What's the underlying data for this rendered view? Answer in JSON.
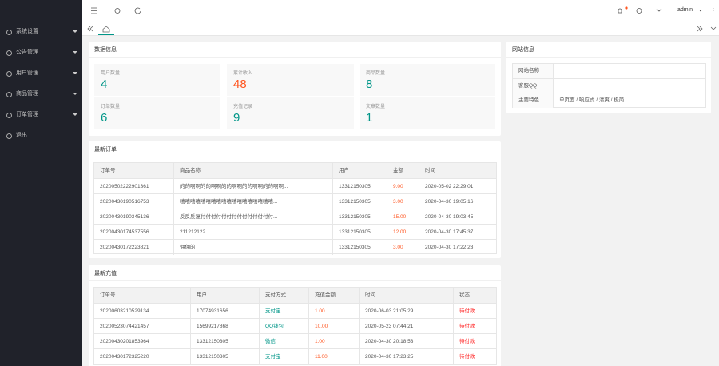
{
  "sidebar": {
    "menu": [
      "系统设置",
      "公告管理",
      "用户管理",
      "商品管理",
      "订单管理",
      "退出"
    ]
  },
  "topbar": {
    "user": "admin"
  },
  "stats": {
    "title": "数据信息",
    "items": [
      {
        "label": "用户数量",
        "value": 4
      },
      {
        "label": "累计收入",
        "value": 48
      },
      {
        "label": "商品数量",
        "value": 8
      },
      {
        "label": "订单数量",
        "value": 6
      },
      {
        "label": "充值记录",
        "value": 9
      },
      {
        "label": "文章数量",
        "value": 1
      }
    ]
  },
  "site_info": {
    "title": "网站信息",
    "rows": [
      {
        "label": "网站名称"
      },
      {
        "label": "客服QQ"
      },
      {
        "label": "主要特色",
        "value": "单页面 / 响应式 / 清爽 / 极简"
      }
    ]
  },
  "orders": {
    "title": "最新订单",
    "columns": [
      "订单号",
      "商品名称",
      "用户",
      "金额",
      "时间"
    ],
    "rows": [
      [
        "20200502222901361",
        "的的啊啊的的啊啊的的啊啊的的啊啊的的啊啊...",
        "13312150305",
        "9.00",
        "2020-05-02 22:29:01"
      ],
      [
        "20200430190516753",
        "嘻嘻嘻嘻嘻嘻嘻嘻嘻嘻嘻嘻嘻嘻嘻嘻嘻嘻...",
        "13312150305",
        "3.00",
        "2020-04-30 19:05:16"
      ],
      [
        "20200430190345136",
        "反反反复付付付付付付付付付付付付付付...",
        "13312150305",
        "15.00",
        "2020-04-30 19:03:45"
      ],
      [
        "20200430174537556",
        "211212122",
        "13312150305",
        "12.00",
        "2020-04-30 17:45:37"
      ],
      [
        "20200430172223821",
        "佣佣的",
        "13312150305",
        "3.00",
        "2020-04-30 17:22:23"
      ]
    ]
  },
  "recharges": {
    "title": "最新充值",
    "columns": [
      "订单号",
      "用户",
      "支付方式",
      "充值金额",
      "时间",
      "状态"
    ],
    "rows": [
      [
        "20200603210529134",
        "17074931656",
        "支付宝",
        "1.00",
        "2020-06-03 21:05:29",
        "待付款"
      ],
      [
        "20200523074421457",
        "15699217868",
        "QQ钱包",
        "10.00",
        "2020-05-23 07:44:21",
        "待付款"
      ],
      [
        "20200430201853964",
        "13312150305",
        "微信",
        "1.00",
        "2020-04-30 20:18:53",
        "待付款"
      ],
      [
        "20200430172325220",
        "13312150305",
        "支付宝",
        "11.00",
        "2020-04-30 17:23:25",
        "待付款"
      ]
    ]
  }
}
